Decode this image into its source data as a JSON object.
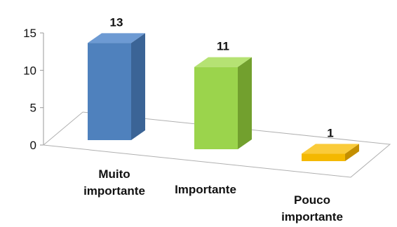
{
  "chart_data": {
    "type": "bar",
    "categories": [
      [
        "Muito",
        "importante"
      ],
      [
        "Importante"
      ],
      [
        "Pouco",
        "importante"
      ]
    ],
    "values": [
      13,
      11,
      1
    ],
    "ylim": [
      0,
      15
    ],
    "yticks": [
      0,
      5,
      10,
      15
    ],
    "data_labels": [
      "13",
      "11",
      "1"
    ],
    "grid": false,
    "style": "3d-column"
  },
  "colors": [
    {
      "front": "#4F81BD",
      "side": "#3B6496",
      "top": "#6D9AD3"
    },
    {
      "front": "#9BD44C",
      "side": "#72A02E",
      "top": "#B5E273"
    },
    {
      "front": "#F4B800",
      "side": "#C48F00",
      "top": "#FACB3A"
    }
  ]
}
